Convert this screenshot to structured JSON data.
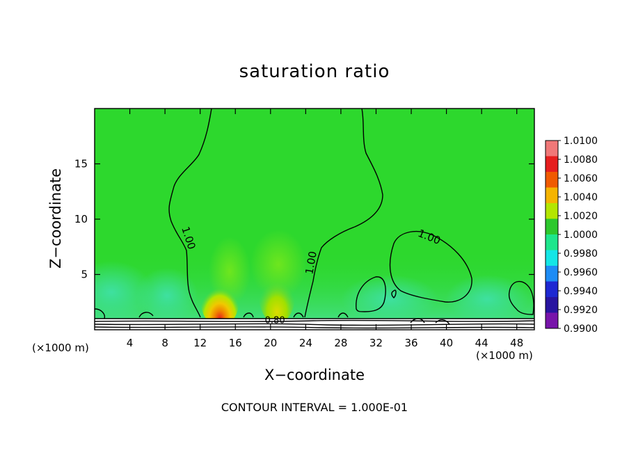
{
  "chart_data": {
    "type": "contour",
    "title": "saturation ratio",
    "xlabel": "X−coordinate",
    "ylabel": "Z−coordinate",
    "x_unit": "(×1000 m)",
    "x_unit_right": "(×1000 m)",
    "xlim": [
      0,
      50
    ],
    "ylim": [
      0,
      20
    ],
    "x_ticks": [
      4,
      8,
      12,
      16,
      20,
      24,
      28,
      32,
      36,
      40,
      44,
      48
    ],
    "y_ticks": [
      5,
      10,
      15
    ],
    "contour_interval_text": "CONTOUR INTERVAL = 1.000E-01",
    "contour_labels": [
      {
        "text": "1.00",
        "x": 10.3,
        "z": 8.2
      },
      {
        "text": "1.00",
        "x": 25.0,
        "z": 6.0
      },
      {
        "text": "1.00",
        "x": 37.9,
        "z": 8.1
      },
      {
        "text": "0.80",
        "x": 20.5,
        "z": 0.6
      }
    ],
    "colorbar": {
      "levels": [
        "1.0100",
        "1.0080",
        "1.0060",
        "1.0040",
        "1.0020",
        "1.0000",
        "0.9980",
        "0.9960",
        "0.9940",
        "0.9920",
        "0.9900"
      ],
      "colors": [
        "#f07878",
        "#e61e1e",
        "#f05a00",
        "#f5b400",
        "#b4e600",
        "#2dc82d",
        "#1ee68c",
        "#14e6e6",
        "#1e8cf5",
        "#1e28d2",
        "#2814a0",
        "#7814aa"
      ]
    },
    "colors": {
      "field_base": "#2dd82d",
      "near_surface": "#50e68c",
      "max_core": "#e61e1e",
      "contour_line": "#000000"
    }
  }
}
